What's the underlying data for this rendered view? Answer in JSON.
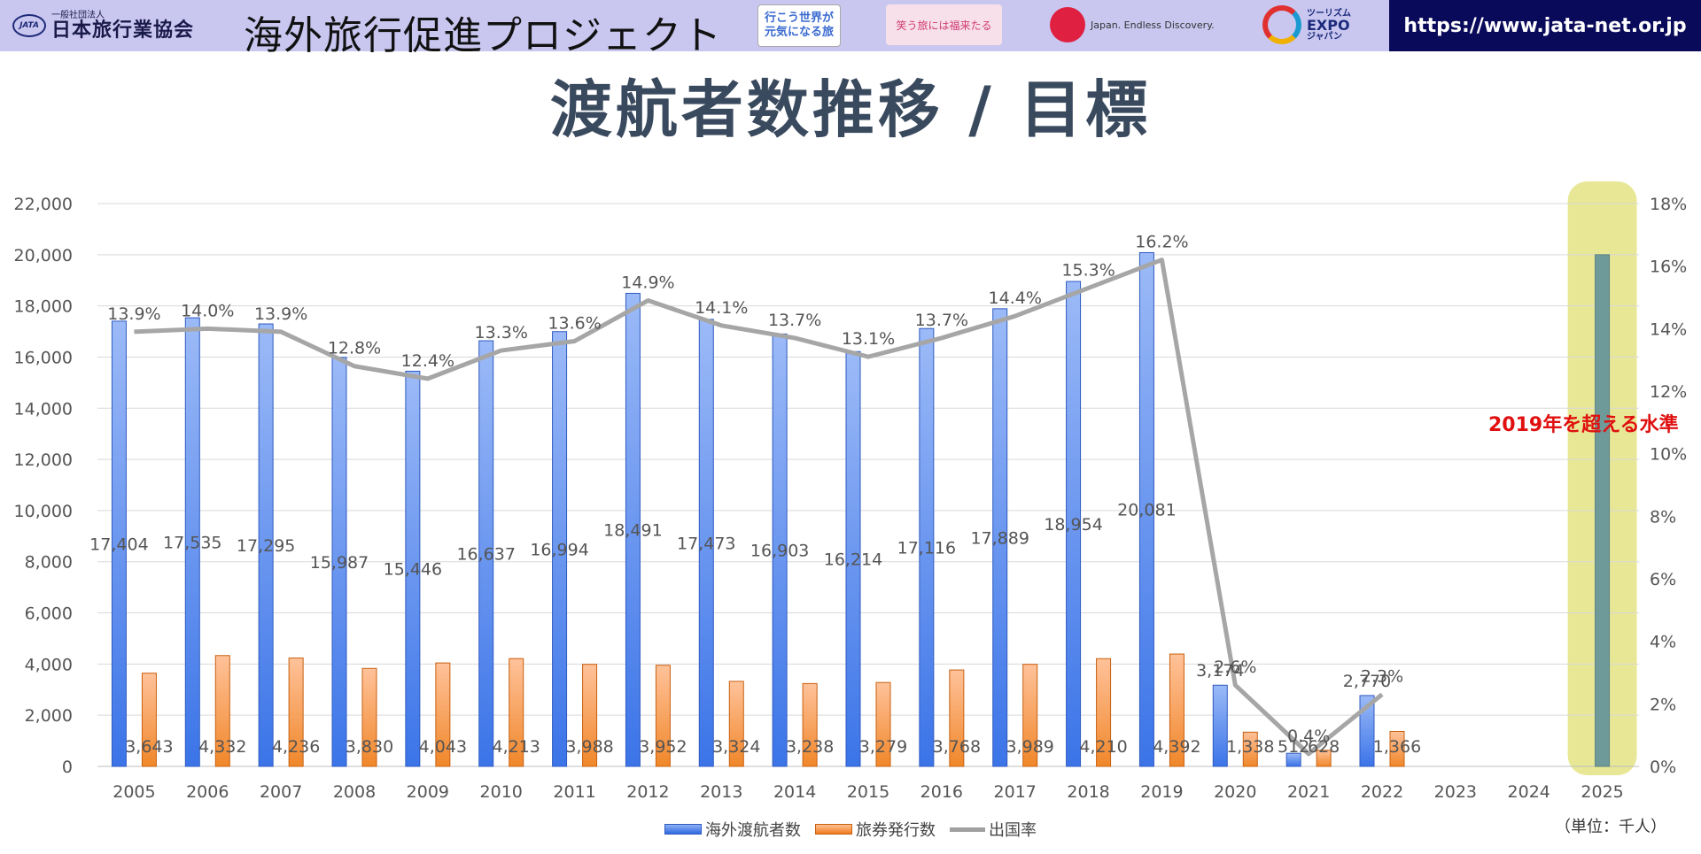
{
  "header": {
    "logo_small": "一般社団法人",
    "logo_main": "日本旅行業協会",
    "logo_mark": "JATA",
    "project_title": "海外旅行促進プロジェクト",
    "logo_travel_line1": "行こう世界が",
    "logo_travel_line2": "元気になる旅",
    "logo_smile": "笑う旅には福来たる",
    "logo_japan": "Japan. Endless Discovery.",
    "logo_expo_line1": "ツーリズム",
    "logo_expo_line2": "EXPO",
    "logo_expo_line3": "ジャパン",
    "url": "https://www.jata-net.or.jp"
  },
  "title": "渡航者数推移 / 目標",
  "annotation": "2019年を超える水準",
  "unit_label": "（単位：千人）",
  "legend": {
    "series1": "海外渡航者数",
    "series2": "旅券発行数",
    "series3": "出国率"
  },
  "colors": {
    "travelers": "#3b74e8",
    "passports": "#f0872a",
    "rate": "#a6a6a6",
    "highlight": "#e4e48a",
    "target_bar": "#6f9a9a",
    "annotation": "#e01010",
    "header_bg": "#c9c7f0",
    "url_bg": "#0a0a5a"
  },
  "chart_data": {
    "type": "bar",
    "categories": [
      "2005",
      "2006",
      "2007",
      "2008",
      "2009",
      "2010",
      "2011",
      "2012",
      "2013",
      "2014",
      "2015",
      "2016",
      "2017",
      "2018",
      "2019",
      "2020",
      "2021",
      "2022",
      "2023",
      "2024",
      "2025"
    ],
    "series": [
      {
        "name": "海外渡航者数",
        "axis": "left",
        "values": [
          17404,
          17535,
          17295,
          15987,
          15446,
          16637,
          16994,
          18491,
          17473,
          16903,
          16214,
          17116,
          17889,
          18954,
          20081,
          3174,
          512,
          2770,
          null,
          null,
          20000
        ],
        "labels": [
          "17,404",
          "17,535",
          "17,295",
          "15,987",
          "15,446",
          "16,637",
          "16,994",
          "18,491",
          "17,473",
          "16,903",
          "16,214",
          "17,116",
          "17,889",
          "18,954",
          "20,081",
          "3,174",
          "512",
          "2,770",
          null,
          null,
          null
        ]
      },
      {
        "name": "旅券発行数",
        "axis": "left",
        "values": [
          3643,
          4332,
          4236,
          3830,
          4043,
          4213,
          3988,
          3952,
          3324,
          3238,
          3279,
          3768,
          3989,
          4210,
          4392,
          1338,
          628,
          1366,
          null,
          null,
          null
        ],
        "labels": [
          "3,643",
          "4,332",
          "4,236",
          "3,830",
          "4,043",
          "4,213",
          "3,988",
          "3,952",
          "3,324",
          "3,238",
          "3,279",
          "3,768",
          "3,989",
          "4,210",
          "4,392",
          "1,338",
          "628",
          "1,366",
          null,
          null,
          null
        ]
      },
      {
        "name": "出国率",
        "type": "line",
        "axis": "right",
        "values": [
          13.9,
          14.0,
          13.9,
          12.8,
          12.4,
          13.3,
          13.6,
          14.9,
          14.1,
          13.7,
          13.1,
          13.7,
          14.4,
          15.3,
          16.2,
          2.6,
          0.4,
          2.3,
          null,
          null,
          null
        ],
        "labels": [
          "13.9%",
          "14.0%",
          "13.9%",
          "12.8%",
          "12.4%",
          "13.3%",
          "13.6%",
          "14.9%",
          "14.1%",
          "13.7%",
          "13.1%",
          "13.7%",
          "14.4%",
          "15.3%",
          "16.2%",
          "2.6%",
          "0.4%",
          "2.3%",
          null,
          null,
          null
        ]
      }
    ],
    "ylim": [
      0,
      22000
    ],
    "y_ticks": [
      "0",
      "2,000",
      "4,000",
      "6,000",
      "8,000",
      "10,000",
      "12,000",
      "14,000",
      "16,000",
      "18,000",
      "20,000",
      "22,000"
    ],
    "y2lim": [
      0,
      18
    ],
    "y2_ticks": [
      "0%",
      "2%",
      "4%",
      "6%",
      "8%",
      "10%",
      "12%",
      "14%",
      "16%",
      "18%"
    ],
    "highlight_category": "2025",
    "grid": true,
    "legend_position": "bottom"
  }
}
